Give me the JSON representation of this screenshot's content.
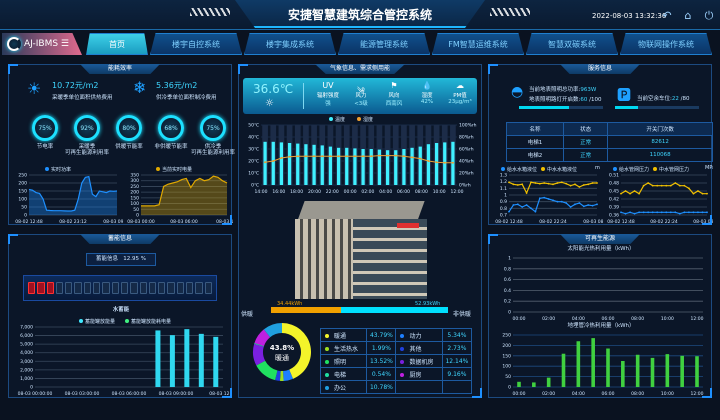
{
  "header": {
    "title": "安捷智慧建筑综合管控系统",
    "datetime": "2022-08-03 13:32:36",
    "icons": [
      "back-icon",
      "home-icon",
      "power-icon"
    ]
  },
  "logo": {
    "text": "AJ-IBMS"
  },
  "nav": [
    {
      "label": "首页",
      "active": true
    },
    {
      "label": "楼宇自控系统"
    },
    {
      "label": "楼宇集成系统"
    },
    {
      "label": "能源管理系统"
    },
    {
      "label": "FM智慧运维系统"
    },
    {
      "label": "智慧双碳系统"
    },
    {
      "label": "物联网操作系统"
    }
  ],
  "efficiency": {
    "title": "能耗效率",
    "heating": {
      "value": "10.72元/m2",
      "label": "采暖季单位面积供热费用"
    },
    "cooling": {
      "value": "5.36元/m2",
      "label": "供冷季单位面积制冷费用"
    },
    "rings": [
      {
        "value": "75%",
        "label": "节电率"
      },
      {
        "value": "92%",
        "label": "采暖季\n可再生能源利用率"
      },
      {
        "value": "80%",
        "label": "供暖节能率"
      },
      {
        "value": "68%",
        "label": "非供暖节能率"
      },
      {
        "value": "75%",
        "label": "供冷季\n可再生能源利用率"
      }
    ]
  },
  "chart_data": [
    {
      "id": "power",
      "type": "area",
      "legend": "实时功率",
      "color": "#1e90ff",
      "ylim": [
        0,
        250
      ],
      "yticks": [
        0,
        50,
        100,
        150,
        200,
        250
      ],
      "xticks": [
        "08-02 12:48",
        "08-02 23:12",
        "08-03 09:36"
      ],
      "values": [
        160,
        155,
        140,
        135,
        100,
        30,
        28,
        27,
        27,
        27,
        26,
        25,
        25,
        30,
        100,
        200,
        235,
        240,
        130,
        115,
        150,
        145,
        140,
        150,
        148,
        150
      ]
    },
    {
      "id": "energy",
      "type": "area",
      "legend": "当前实时电量",
      "color": "#e0a800",
      "ylim": [
        0,
        350
      ],
      "yticks": [
        0,
        50,
        100,
        150,
        200,
        250,
        300,
        350
      ],
      "xticks": [
        "08-03 00:00",
        "08-03 06:00",
        "08-03 12:"
      ],
      "values": [
        80,
        80,
        80,
        80,
        90,
        250,
        270,
        280,
        290,
        310,
        320,
        240,
        300,
        320,
        300,
        310,
        340,
        330,
        300,
        280
      ]
    },
    {
      "id": "weather",
      "type": "bar+line",
      "legend": [
        "温度",
        "湿度"
      ],
      "ylim": [
        0,
        50
      ],
      "yticks": [
        "0℃",
        "10℃",
        "20℃",
        "30℃",
        "40℃",
        "50℃"
      ],
      "y2ticks": [
        "0%rh",
        "20%rh",
        "40%rh",
        "60%rh",
        "80%rh",
        "100%rh"
      ],
      "xticks": [
        "14:00",
        "16:00",
        "18:00",
        "20:00",
        "22:00",
        "00:00",
        "02:00",
        "04:00",
        "06:00",
        "08:00",
        "10:00",
        "12:00"
      ],
      "temperature": [
        36,
        36,
        35.5,
        35,
        34.5,
        34,
        33.5,
        33,
        32,
        31,
        31,
        30.5,
        30,
        30,
        29.5,
        29,
        29,
        30,
        31,
        32,
        34,
        35,
        35.5,
        36
      ],
      "humidity": [
        38,
        40,
        45,
        47,
        48,
        48,
        48,
        48,
        48,
        48,
        48,
        48,
        48,
        48,
        49,
        49,
        49,
        48,
        46,
        44,
        40,
        38,
        37,
        37
      ]
    },
    {
      "id": "water-level",
      "type": "line",
      "unit": "m",
      "legend": [
        "给水水箱液位",
        "中水水箱液位"
      ],
      "ylim": [
        0.7,
        1.3
      ],
      "yticks": [
        "0.7",
        "0.8",
        "0.9",
        "1",
        "1.1",
        "1.2",
        "1.3"
      ],
      "xticks": [
        "08-02 12:48",
        "08-02 22:24",
        "08-03 08:00"
      ],
      "series": [
        {
          "name": "给水水箱液位",
          "color": "#1e90ff",
          "values": [
            0.75,
            0.85,
            0.86,
            0.82,
            0.85,
            0.8,
            0.75,
            0.95,
            0.96,
            0.94,
            0.92,
            0.9,
            0.9,
            0.88,
            0.82,
            0.86,
            0.88,
            0.83,
            0.85,
            0.84,
            0.86
          ]
        },
        {
          "name": "中水水箱液位",
          "color": "#f0c000",
          "values": [
            1.19,
            1.16,
            1.15,
            1.16,
            1.03,
            1.19,
            1.18,
            1.17,
            1.18,
            1.17,
            1.16,
            1.18,
            1.19,
            1.17,
            1.14,
            1.16,
            1.12,
            1.15,
            1.16,
            1.18,
            1.18
          ]
        }
      ]
    },
    {
      "id": "water-pressure",
      "type": "line",
      "unit": "MPa",
      "legend": [
        "给水管网压力",
        "中水管网压力"
      ],
      "ylim": [
        0.36,
        0.51
      ],
      "yticks": [
        "0.36",
        "0.39",
        "0.42",
        "0.45",
        "0.48",
        "0.51"
      ],
      "xticks": [
        "08-02 12:48",
        "08-02 22:24",
        "08-03 08:00"
      ],
      "series": [
        {
          "name": "给水管网压力",
          "color": "#1e90ff",
          "values": [
            0.37,
            0.365,
            0.37,
            0.365,
            0.37,
            0.37,
            0.37,
            0.37,
            0.37,
            0.37,
            0.37,
            0.37,
            0.37,
            0.365,
            0.37,
            0.37,
            0.37,
            0.37,
            0.37,
            0.37
          ]
        },
        {
          "name": "中水管网压力",
          "color": "#f0c000",
          "values": [
            0.44,
            0.45,
            0.44,
            0.45,
            0.44,
            0.47,
            0.48,
            0.47,
            0.47,
            0.47,
            0.47,
            0.47,
            0.48,
            0.47,
            0.47,
            0.46,
            0.44,
            0.45,
            0.44,
            0.44
          ]
        }
      ]
    },
    {
      "id": "storage",
      "type": "bar",
      "title": "水蓄能",
      "legend": [
        "蓄能罐放能量",
        "蓄能罐放能耗电量"
      ],
      "ylim": [
        0,
        7000
      ],
      "yticks": [
        "0",
        "1,000",
        "2,000",
        "3,000",
        "4,000",
        "5,000",
        "6,000",
        "7,000"
      ],
      "xticks": [
        "08-03 00:00:00",
        "08-03 03:00:00",
        "08-03 06:00:00",
        "08-03 09:00:00",
        "08-03 12:00"
      ],
      "x": [
        8.5,
        9.5,
        10.5,
        11.5,
        12.5
      ],
      "values": [
        6600,
        6050,
        6750,
        6200,
        5850
      ]
    },
    {
      "id": "solar",
      "type": "line",
      "title": "太阳能光热利用量（kWh）",
      "ylim": [
        0,
        1
      ],
      "yticks": [
        "0",
        "0.2",
        "0.4",
        "0.6",
        "0.8",
        "1"
      ],
      "xticks": [
        "00:00",
        "02:00",
        "04:00",
        "06:00",
        "08:00",
        "10:00",
        "12:00"
      ],
      "values": []
    },
    {
      "id": "ground",
      "type": "bar",
      "title": "地埋管冷热利用量（kWh）",
      "ylim": [
        0,
        250
      ],
      "yticks": [
        "0",
        "50",
        "100",
        "150",
        "200",
        "250"
      ],
      "xticks": [
        "00:00",
        "02:00",
        "04:00",
        "06:00",
        "08:00",
        "10:00",
        "12:00"
      ],
      "values": [
        25,
        22,
        45,
        160,
        220,
        235,
        185,
        125,
        155,
        140,
        158,
        150,
        148
      ]
    }
  ],
  "weather": {
    "title": "气象信息、需求侧用能",
    "temperature": "36.6℃",
    "items": [
      {
        "head": "UV",
        "label": "辐射强度",
        "value": "强"
      },
      {
        "head": "wind-icon",
        "label": "风力",
        "value": "<3级"
      },
      {
        "head": "flag-icon",
        "label": "风向",
        "value": "西南风"
      },
      {
        "head": "drop-icon",
        "label": "湿度",
        "value": "42%"
      },
      {
        "head": "pm-icon",
        "label": "PM值",
        "value": "23μg/m³"
      }
    ]
  },
  "supply": {
    "left_label": "供暖",
    "right_label": "非供暖",
    "left_value": "34.44kWh",
    "right_value": "52.93kWh",
    "left_fraction": 0.394
  },
  "donut": {
    "center_value": "43.8%",
    "center_label": "暖通",
    "items": [
      {
        "name": "暖通",
        "pct": "43.79%",
        "color": "#f4f42a"
      },
      {
        "name": "动力",
        "pct": "5.34%",
        "color": "#1e7fff"
      },
      {
        "name": "生活热水",
        "pct": "1.99%",
        "color": "#a0e020"
      },
      {
        "name": "其他",
        "pct": "2.73%",
        "color": "#2040e0"
      },
      {
        "name": "照明",
        "pct": "13.52%",
        "color": "#20e060"
      },
      {
        "name": "数据机房",
        "pct": "12.14%",
        "color": "#7a20e0"
      },
      {
        "name": "电梯",
        "pct": "0.54%",
        "color": "#20e0a0"
      },
      {
        "name": "厨房",
        "pct": "9.16%",
        "color": "#c020e0"
      },
      {
        "name": "办公",
        "pct": "10.78%",
        "color": "#20a0e0"
      }
    ]
  },
  "service": {
    "title": "服务信息",
    "light_power_label": "当前地表照明总功率:",
    "light_power": "963W",
    "lamps_label": "地表照明路灯开启数:",
    "lamps_on": "60",
    "lamps_total": "/100",
    "lamps_fraction": 0.6,
    "parking_label": "当前空余车位:",
    "parking_free": "22",
    "parking_total": "/80",
    "parking_fraction": 0.275,
    "table": {
      "headers": [
        "名称",
        "状态",
        "开关门次数"
      ],
      "rows": [
        [
          "电梯1",
          "正常",
          "82612"
        ],
        [
          "电梯2",
          "正常",
          "110068"
        ]
      ]
    }
  },
  "storage_info": {
    "title": "蓄能信息",
    "label": "蓄能信息",
    "value": "12.95 %",
    "cells_total": 20,
    "cells_filled": 3
  },
  "renewable": {
    "title": "可再生能源"
  }
}
